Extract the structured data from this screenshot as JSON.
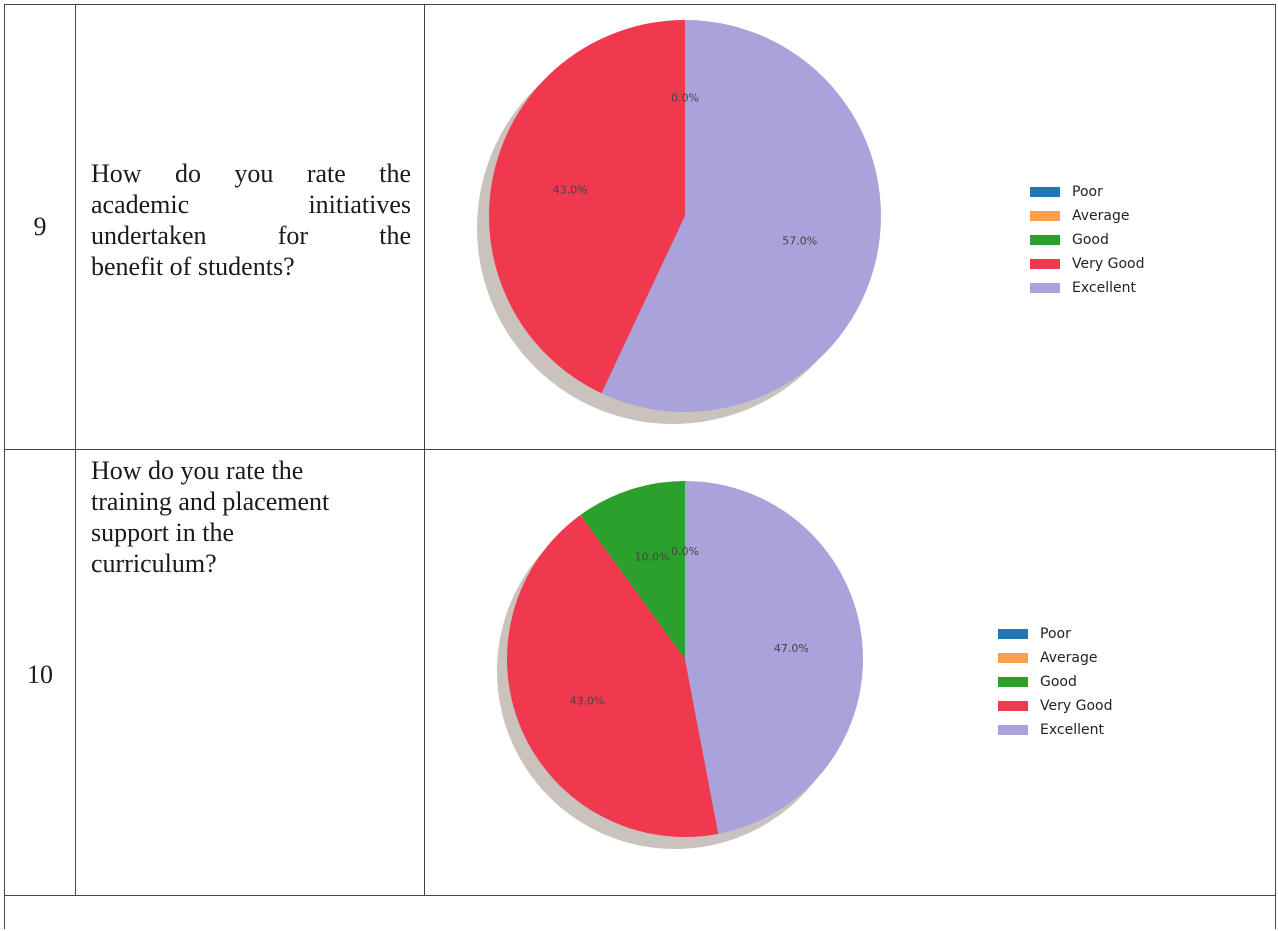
{
  "rows": [
    {
      "number": "9",
      "question_lines": [
        "How do you rate the",
        "academic initiatives",
        "undertaken for the",
        "benefit of students?"
      ]
    },
    {
      "number": "10",
      "question_lines": [
        "How do you rate the",
        "training and placement",
        "support in the",
        "curriculum?"
      ]
    }
  ],
  "chart_data": [
    {
      "type": "pie",
      "title": "",
      "categories": [
        "Poor",
        "Average",
        "Good",
        "Very Good",
        "Excellent"
      ],
      "values": [
        0.0,
        0.0,
        0.0,
        43.0,
        57.0
      ],
      "labels": [
        "",
        "",
        "0.0%",
        "43.0%",
        "57.0%"
      ],
      "colors": [
        "#1f77b4",
        "#ff9f4a",
        "#2ca02c",
        "#f0394f",
        "#a9a2db"
      ],
      "shadow": true,
      "legend_position": "right"
    },
    {
      "type": "pie",
      "title": "",
      "categories": [
        "Poor",
        "Average",
        "Good",
        "Very Good",
        "Excellent"
      ],
      "values": [
        0.0,
        0.0,
        10.0,
        43.0,
        47.0
      ],
      "labels": [
        "",
        "0.0%",
        "10.0%",
        "43.0%",
        "47.0%"
      ],
      "colors": [
        "#1f77b4",
        "#ff9f4a",
        "#2ca02c",
        "#f0394f",
        "#a9a2db"
      ],
      "shadow": true,
      "legend_position": "right"
    }
  ]
}
